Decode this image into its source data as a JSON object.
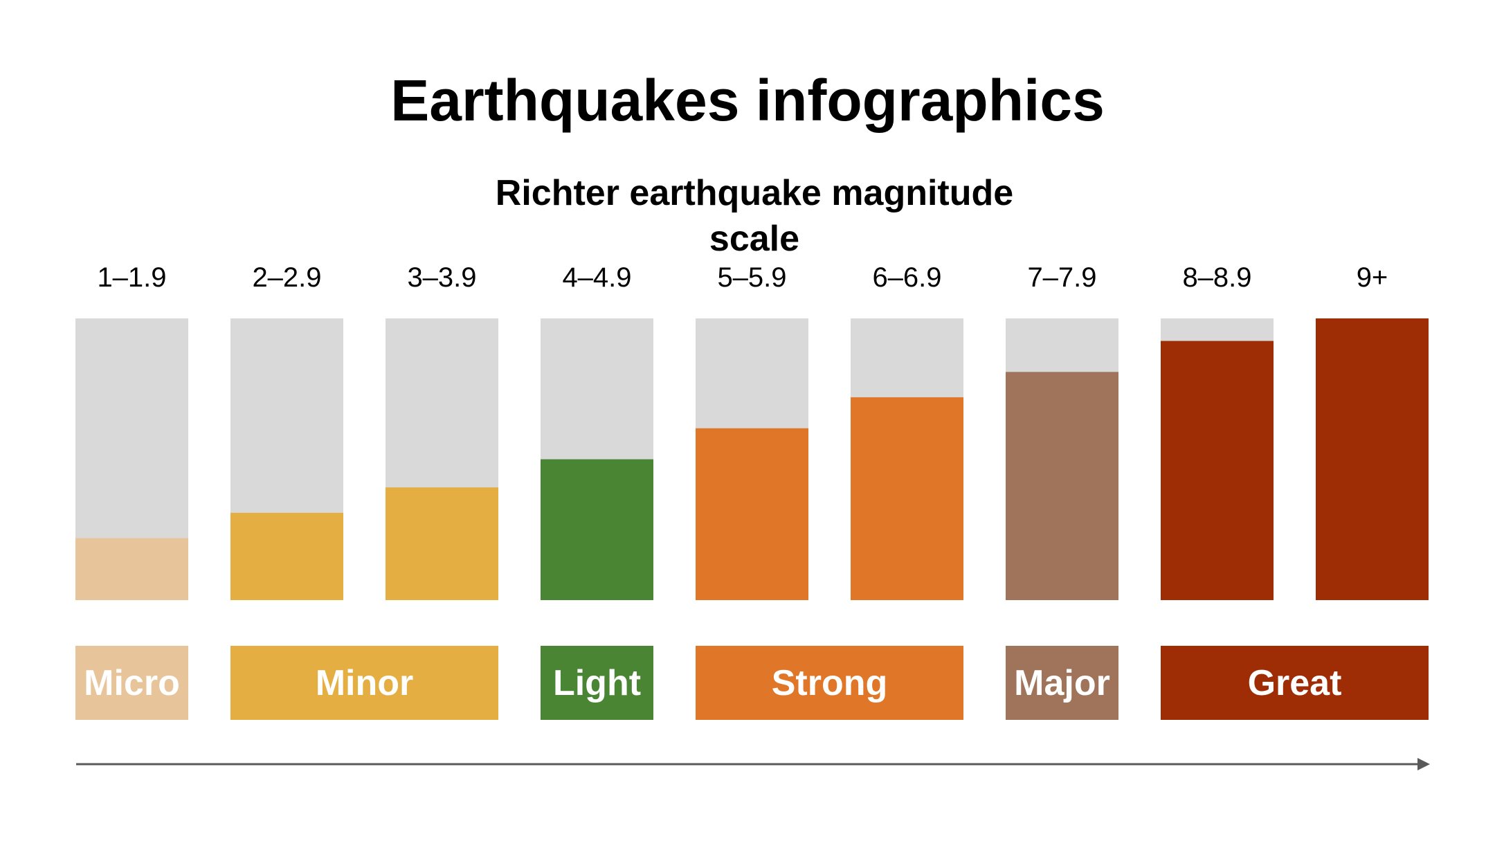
{
  "title": "Earthquakes infographics",
  "chart_data": {
    "type": "bar",
    "title": "Richter earthquake magnitude scale",
    "categories": [
      "1–1.9",
      "2–2.9",
      "3–3.9",
      "4–4.9",
      "5–5.9",
      "6–6.9",
      "7–7.9",
      "8–8.9",
      "9+"
    ],
    "values": [
      22,
      31,
      40,
      50,
      61,
      72,
      81,
      92,
      100
    ],
    "ylim": [
      0,
      100
    ],
    "bar_colors": [
      "#E8C49A",
      "#E5AE42",
      "#E5AE42",
      "#4A8534",
      "#E07628",
      "#E07628",
      "#A0745A",
      "#9E2C05",
      "#9E2C05"
    ],
    "background_color": "#D9D9D9",
    "grid": false,
    "legend": "none",
    "magnitude_classes": [
      {
        "label": "Micro",
        "span": [
          0,
          0
        ],
        "color": "#E8C49A"
      },
      {
        "label": "Minor",
        "span": [
          1,
          2
        ],
        "color": "#E5AE42"
      },
      {
        "label": "Light",
        "span": [
          3,
          3
        ],
        "color": "#4A8534"
      },
      {
        "label": "Strong",
        "span": [
          4,
          5
        ],
        "color": "#E07628"
      },
      {
        "label": "Major",
        "span": [
          6,
          6
        ],
        "color": "#A0745A"
      },
      {
        "label": "Great",
        "span": [
          7,
          8
        ],
        "color": "#9E2C05"
      }
    ],
    "arrow_color": "#595959"
  }
}
